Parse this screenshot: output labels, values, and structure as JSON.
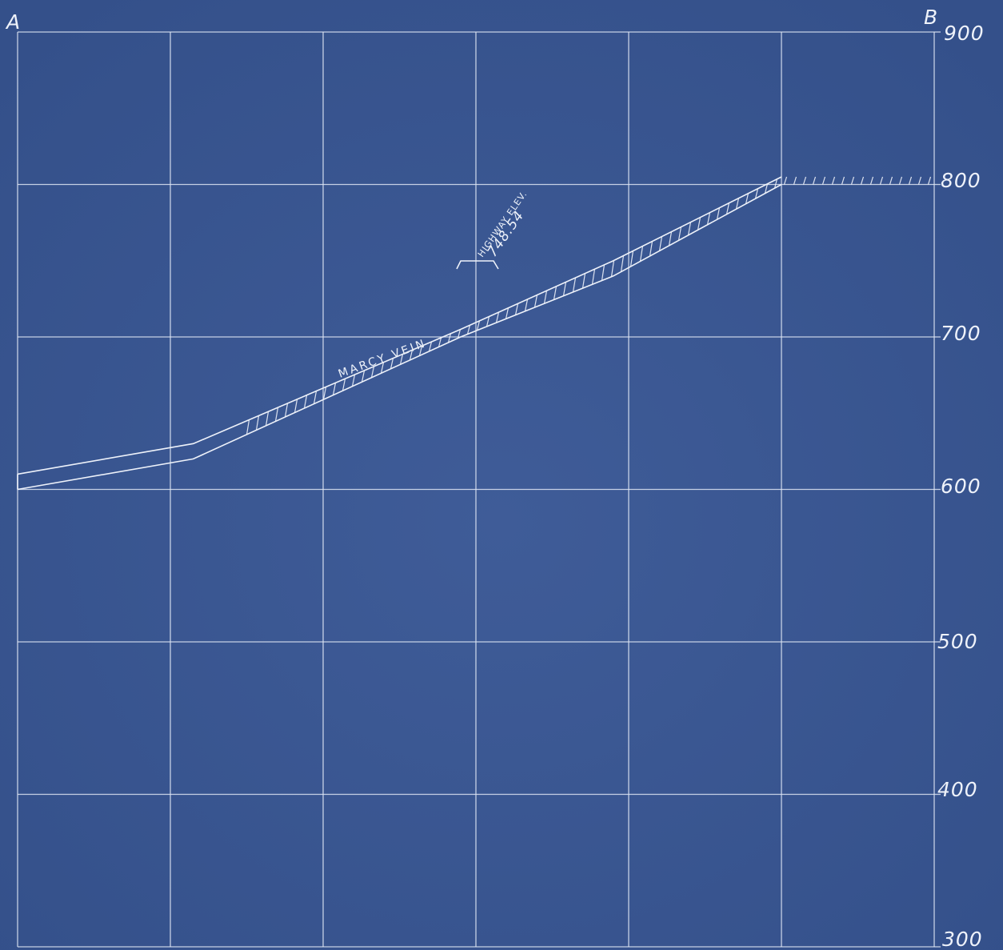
{
  "section": {
    "start_label": "A",
    "end_label": "B",
    "elevation_labels": [
      "900",
      "800",
      "700",
      "600",
      "500",
      "400",
      "300"
    ],
    "vein_label": "MARCY VEIN",
    "highway_label": "HIGHWAY ELEV.",
    "highway_value": "748.54"
  },
  "chart_data": {
    "type": "line",
    "ylim": [
      300,
      900
    ],
    "grid": true,
    "series": [
      {
        "name": "MARCY VEIN",
        "x": [
          0,
          1.15,
          2.9,
          3.9,
          5
        ],
        "y_top": [
          610,
          630,
          705,
          750,
          805
        ],
        "y_bottom": [
          600,
          620,
          700,
          740,
          800
        ]
      }
    ],
    "annotations": [
      {
        "text": "HIGHWAY ELEV. 748.54",
        "x": 3.0,
        "y": 748.54
      }
    ]
  },
  "colors": {
    "background": "#3b5790",
    "lines": "#dfe6f4"
  }
}
